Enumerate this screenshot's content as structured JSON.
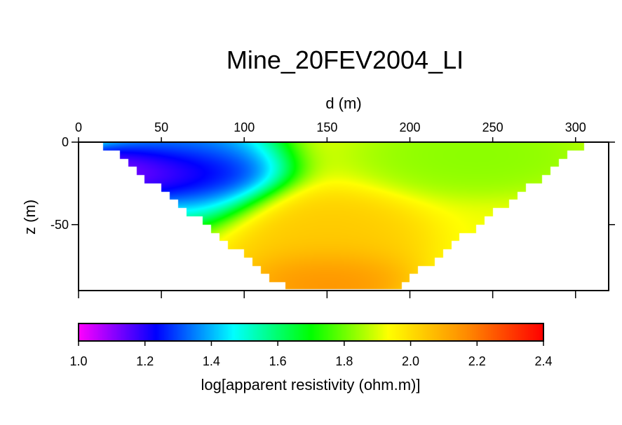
{
  "chart_data": {
    "type": "heatmap",
    "title": "Mine_20FEV2004_LI",
    "xlabel": "d (m)",
    "ylabel": "z (m)",
    "x_axis_position": "top",
    "xlim": [
      0,
      320
    ],
    "ylim": [
      -90,
      0
    ],
    "x_ticks": [
      0,
      50,
      100,
      150,
      200,
      250,
      300
    ],
    "x_tick_labels": [
      "0",
      "50",
      "100",
      "150",
      "200",
      "250",
      "300"
    ],
    "y_ticks": [
      0,
      -50
    ],
    "y_tick_labels": [
      "0",
      "-50"
    ],
    "grid": false,
    "section_outline": {
      "top_left_x": 10,
      "top_right_x": 308,
      "bottom_left_x": 122,
      "bottom_right_x": 192,
      "bottom_z": -89
    },
    "value_field": {
      "description_units": "log[apparent resistivity (ohm.m)]",
      "anomalies": [
        {
          "x": 40,
          "z": -18,
          "value": 1.0,
          "radius_x": 55,
          "radius_z": 15
        },
        {
          "x": 65,
          "z": -12,
          "value": 1.3,
          "radius_x": 45,
          "radius_z": 30
        },
        {
          "x": 150,
          "z": -82,
          "value": 2.18,
          "radius_x": 40,
          "radius_z": 18
        },
        {
          "x": 150,
          "z": -60,
          "value": 2.05,
          "radius_x": 50,
          "radius_z": 25
        },
        {
          "x": 240,
          "z": -8,
          "value": 1.82,
          "radius_x": 60,
          "radius_z": 20
        }
      ],
      "background_value": 1.92
    },
    "colorbar": {
      "label": "log[apparent resistivity (ohm.m)]",
      "min": 1.0,
      "max": 2.4,
      "ticks": [
        "1.0",
        "1.2",
        "1.4",
        "1.6",
        "1.8",
        "2.0",
        "2.2",
        "2.4"
      ],
      "colors": [
        "#ff00ff",
        "#0000ff",
        "#00ffff",
        "#00ff00",
        "#ffff00",
        "#ff8c00",
        "#ff0000"
      ]
    }
  }
}
